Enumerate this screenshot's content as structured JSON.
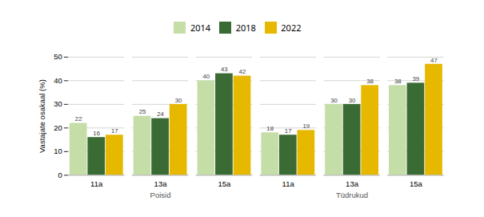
{
  "chart_data": {
    "type": "bar",
    "sections": [
      {
        "name": "Poisid",
        "categories": [
          "11a",
          "13a",
          "15a"
        ]
      },
      {
        "name": "Tüdrukud",
        "categories": [
          "11a",
          "13a",
          "15a"
        ]
      }
    ],
    "series": [
      {
        "name": "2014",
        "color": "#c5dea8",
        "values": [
          22,
          25,
          40,
          18,
          30,
          38
        ]
      },
      {
        "name": "2018",
        "color": "#3a6b35",
        "values": [
          16,
          24,
          43,
          17,
          30,
          39
        ]
      },
      {
        "name": "2022",
        "color": "#e6b800",
        "values": [
          17,
          30,
          42,
          19,
          38,
          47
        ]
      }
    ],
    "ylabel": "Vastajate osakaal (%)",
    "ylim": [
      0,
      50
    ],
    "yticks": [
      0,
      10,
      20,
      30,
      40,
      50
    ],
    "grid": true,
    "legend": "top",
    "data_labels": true
  }
}
